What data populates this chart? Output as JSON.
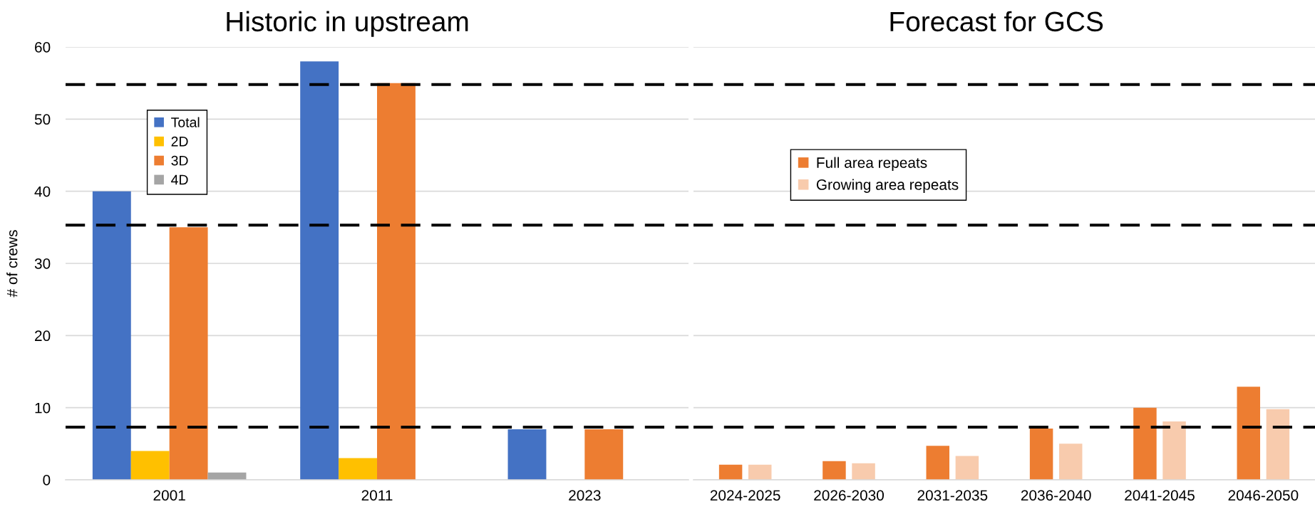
{
  "chart_data": [
    {
      "type": "bar",
      "title": "Historic in upstream",
      "ylabel": "# of crews",
      "categories": [
        "2001",
        "2011",
        "2023"
      ],
      "series": [
        {
          "name": "Total",
          "color": "#4472c4",
          "values": [
            40,
            58,
            7
          ]
        },
        {
          "name": "2D",
          "color": "#ffc000",
          "values": [
            4,
            3,
            null
          ]
        },
        {
          "name": "3D",
          "color": "#ed7d31",
          "values": [
            35,
            55,
            7
          ]
        },
        {
          "name": "4D",
          "color": "#a5a5a5",
          "values": [
            1,
            null,
            null
          ]
        }
      ],
      "ylim": [
        0,
        60
      ],
      "yticks": [
        0,
        10,
        20,
        30,
        40,
        50,
        60
      ],
      "grid": "y",
      "legend": "top left",
      "ref_lines": [
        {
          "axis": "y",
          "value": 54.8,
          "color": "#000000",
          "line_style": "dashed"
        },
        {
          "axis": "y",
          "value": 35.3,
          "color": "#000000",
          "line_style": "dashed"
        },
        {
          "axis": "y",
          "value": 7.3,
          "color": "#000000",
          "line_style": "dashed"
        }
      ]
    },
    {
      "type": "bar",
      "title": "Forecast for GCS",
      "categories": [
        "2024-2025",
        "2026-2030",
        "2031-2035",
        "2036-2040",
        "2041-2045",
        "2046-2050"
      ],
      "series": [
        {
          "name": "Full area repeats",
          "color": "#ed7d31",
          "values": [
            2.1,
            2.6,
            4.7,
            7.1,
            10.0,
            12.9
          ]
        },
        {
          "name": "Growing area repeats",
          "color": "#f8cbad",
          "values": [
            2.1,
            2.3,
            3.3,
            5.0,
            8.1,
            9.8
          ]
        }
      ],
      "ylim": [
        0,
        60
      ],
      "yticks": [
        0,
        10,
        20,
        30,
        40,
        50,
        60
      ],
      "tick_labels": "x",
      "grid": "y",
      "legend": "top left",
      "ref_lines": [
        {
          "axis": "y",
          "value": 54.8,
          "color": "#000000",
          "line_style": "dashed"
        },
        {
          "axis": "y",
          "value": 35.3,
          "color": "#000000",
          "line_style": "dashed"
        },
        {
          "axis": "y",
          "value": 7.3,
          "color": "#000000",
          "line_style": "dashed"
        }
      ]
    }
  ]
}
